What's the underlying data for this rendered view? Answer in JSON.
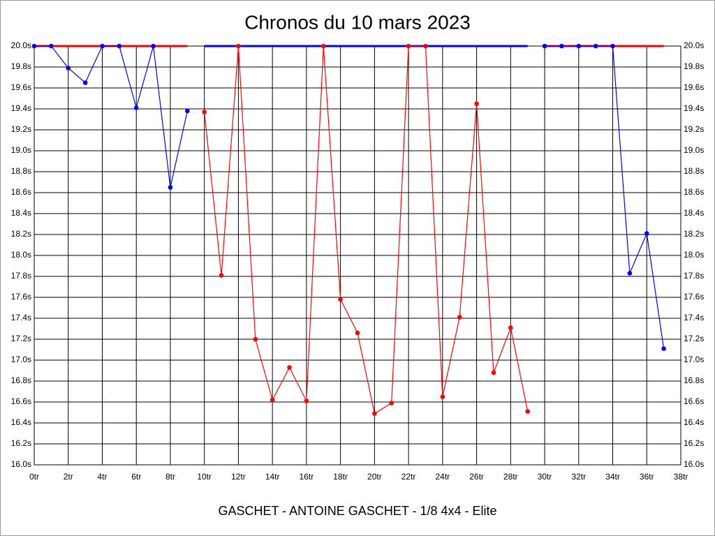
{
  "chart_data": {
    "type": "line",
    "title": "Chronos du 10 mars 2023",
    "x_label": "GASCHET - ANTOINE GASCHET - 1/8 4x4 - Elite",
    "x": [
      0,
      1,
      2,
      3,
      4,
      5,
      6,
      7,
      8,
      9,
      10,
      11,
      12,
      13,
      14,
      15,
      16,
      17,
      18,
      19,
      20,
      21,
      22,
      23,
      24,
      25,
      26,
      27,
      28,
      29,
      30,
      31,
      32,
      33,
      34,
      35,
      36,
      37
    ],
    "series": [
      {
        "color": "#ff0000",
        "markers": false,
        "values": [
          20,
          20,
          20,
          20,
          20,
          20,
          20,
          20,
          20,
          20,
          null,
          null,
          null,
          null,
          null,
          null,
          null,
          null,
          null,
          null,
          null,
          null,
          null,
          null,
          null,
          null,
          null,
          null,
          null,
          null,
          20,
          20,
          20,
          20,
          20,
          20,
          20,
          20
        ]
      },
      {
        "color": "#0000ff",
        "markers": false,
        "values": [
          null,
          null,
          null,
          null,
          null,
          null,
          null,
          null,
          null,
          null,
          20,
          20,
          20,
          20,
          20,
          20,
          20,
          20,
          20,
          20,
          20,
          20,
          20,
          20,
          20,
          20,
          20,
          20,
          20,
          20,
          null,
          null,
          null,
          null,
          null,
          null,
          null,
          null
        ]
      },
      {
        "color": "#0000ff",
        "markers": true,
        "values": [
          20,
          20,
          19.79,
          19.65,
          20,
          20,
          19.41,
          20,
          18.65,
          19.38,
          null,
          null,
          null,
          null,
          null,
          null,
          null,
          null,
          null,
          null,
          null,
          null,
          null,
          null,
          null,
          null,
          null,
          null,
          null,
          null,
          20,
          20,
          20,
          20,
          20,
          17.83,
          18.21,
          17.11
        ]
      },
      {
        "color": "#ff0000",
        "markers": true,
        "values": [
          null,
          null,
          null,
          null,
          null,
          null,
          null,
          null,
          null,
          null,
          19.37,
          17.81,
          20,
          17.2,
          16.62,
          16.93,
          16.61,
          20,
          17.58,
          17.26,
          16.49,
          16.59,
          20,
          20,
          16.65,
          17.41,
          19.45,
          16.88,
          17.31,
          16.51,
          null,
          null,
          null,
          null,
          null,
          null,
          null,
          null
        ]
      }
    ],
    "xlim": [
      0,
      38
    ],
    "xticks": [
      {
        "value": 0,
        "label": "0tr"
      },
      {
        "value": 2,
        "label": "2tr"
      },
      {
        "value": 4,
        "label": "4tr"
      },
      {
        "value": 6,
        "label": "6tr"
      },
      {
        "value": 8,
        "label": "8tr"
      },
      {
        "value": 10,
        "label": "10tr"
      },
      {
        "value": 12,
        "label": "12tr"
      },
      {
        "value": 14,
        "label": "14tr"
      },
      {
        "value": 16,
        "label": "16tr"
      },
      {
        "value": 18,
        "label": "18tr"
      },
      {
        "value": 20,
        "label": "20tr"
      },
      {
        "value": 22,
        "label": "22tr"
      },
      {
        "value": 24,
        "label": "24tr"
      },
      {
        "value": 26,
        "label": "26tr"
      },
      {
        "value": 28,
        "label": "28tr"
      },
      {
        "value": 30,
        "label": "30tr"
      },
      {
        "value": 32,
        "label": "32tr"
      },
      {
        "value": 34,
        "label": "34tr"
      },
      {
        "value": 36,
        "label": "36tr"
      },
      {
        "value": 38,
        "label": "38tr"
      }
    ],
    "ylim": [
      16,
      20
    ],
    "yticks": [
      {
        "value": 16,
        "label": "16.0s"
      },
      {
        "value": 16.2,
        "label": "16.2s"
      },
      {
        "value": 16.4,
        "label": "16.4s"
      },
      {
        "value": 16.6,
        "label": "16.6s"
      },
      {
        "value": 16.8,
        "label": "16.8s"
      },
      {
        "value": 17,
        "label": "17.0s"
      },
      {
        "value": 17.2,
        "label": "17.2s"
      },
      {
        "value": 17.4,
        "label": "17.4s"
      },
      {
        "value": 17.6,
        "label": "17.6s"
      },
      {
        "value": 17.8,
        "label": "17.8s"
      },
      {
        "value": 18,
        "label": "18.0s"
      },
      {
        "value": 18.2,
        "label": "18.2s"
      },
      {
        "value": 18.4,
        "label": "18.4s"
      },
      {
        "value": 18.6,
        "label": "18.6s"
      },
      {
        "value": 18.8,
        "label": "18.8s"
      },
      {
        "value": 19,
        "label": "19.0s"
      },
      {
        "value": 19.2,
        "label": "19.2s"
      },
      {
        "value": 19.4,
        "label": "19.4s"
      },
      {
        "value": 19.6,
        "label": "19.6s"
      },
      {
        "value": 19.8,
        "label": "19.8s"
      },
      {
        "value": 20,
        "label": "20.0s"
      }
    ],
    "grid": true,
    "y_labels_both_sides": true
  }
}
